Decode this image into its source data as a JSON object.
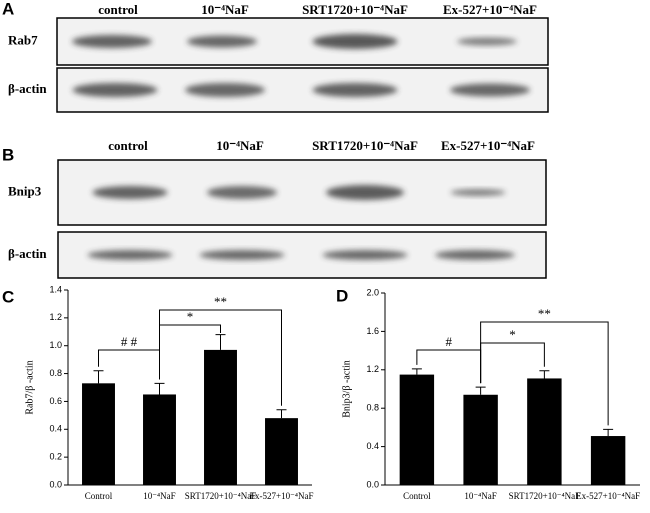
{
  "blot_a": {
    "letter": "A",
    "lanes": [
      "control",
      "10⁻⁴NaF",
      "SRT1720+10⁻⁴NaF",
      "Ex-527+10⁻⁴NaF"
    ],
    "rows": [
      "Rab7",
      "β-actin"
    ]
  },
  "blot_b": {
    "letter": "B",
    "lanes": [
      "control",
      "10⁻⁴NaF",
      "SRT1720+10⁻⁴NaF",
      "Ex-527+10⁻⁴NaF"
    ],
    "rows": [
      "Bnip3",
      "β-actin"
    ]
  },
  "chart_data": [
    {
      "type": "bar",
      "letter": "C",
      "y_label": "Rab7/β -actin",
      "categories": [
        "Control",
        "10⁻⁴NaF",
        "SRT1720+10⁻⁴NaF",
        "Ex-527+10⁻⁴NaF"
      ],
      "values": [
        0.73,
        0.65,
        0.97,
        0.48
      ],
      "errors": [
        0.09,
        0.08,
        0.11,
        0.06
      ],
      "color": "#000000",
      "ylim": [
        0,
        1.4
      ],
      "yticks": [
        {
          "value": 0,
          "label": "0.0"
        },
        0.2,
        0.4,
        0.6,
        0.8,
        {
          "value": 1,
          "label": "1.0"
        },
        1.2,
        1.4
      ],
      "annotations": [
        {
          "text": "# #",
          "pair": [
            0,
            1
          ]
        },
        {
          "text": "*",
          "pair": [
            1,
            2
          ]
        },
        {
          "text": "**",
          "pair": [
            1,
            3
          ]
        }
      ]
    },
    {
      "type": "bar",
      "letter": "D",
      "y_label": "Bnip3/β -actin",
      "categories": [
        "Control",
        "10⁻⁴NaF",
        "SRT1720+10⁻⁴NaF",
        "Ex-527+10⁻⁴NaF"
      ],
      "values": [
        1.15,
        0.94,
        1.11,
        0.51
      ],
      "errors": [
        0.06,
        0.08,
        0.08,
        0.07
      ],
      "color": "#000000",
      "ylim": [
        0,
        2
      ],
      "yticks": [
        {
          "value": 0,
          "label": "0.0"
        },
        0.4,
        0.8,
        1.2,
        1.6,
        {
          "value": 2,
          "label": "2.0"
        }
      ],
      "annotations": [
        {
          "text": "#",
          "pair": [
            0,
            1
          ]
        },
        {
          "text": "*",
          "pair": [
            1,
            2
          ]
        },
        {
          "text": "**",
          "pair": [
            1,
            3
          ]
        }
      ]
    }
  ]
}
